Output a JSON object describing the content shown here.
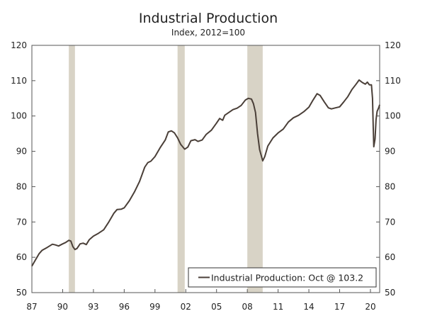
{
  "chart_data": {
    "type": "line",
    "title": "Industrial Production",
    "subtitle": "Index, 2012=100",
    "xlabel": "",
    "ylabel": "",
    "xlim": [
      1987.0,
      2020.9
    ],
    "ylim": [
      50,
      120
    ],
    "y_ticks": [
      50,
      60,
      70,
      80,
      90,
      100,
      110,
      120
    ],
    "x_ticks": [
      {
        "value": 1987,
        "label": "87"
      },
      {
        "value": 1990,
        "label": "90"
      },
      {
        "value": 1993,
        "label": "93"
      },
      {
        "value": 1996,
        "label": "96"
      },
      {
        "value": 1999,
        "label": "99"
      },
      {
        "value": 2002,
        "label": "02"
      },
      {
        "value": 2005,
        "label": "05"
      },
      {
        "value": 2008,
        "label": "08"
      },
      {
        "value": 2011,
        "label": "11"
      },
      {
        "value": 2014,
        "label": "14"
      },
      {
        "value": 2017,
        "label": "17"
      },
      {
        "value": 2020,
        "label": "20"
      }
    ],
    "recessions": [
      {
        "start": 1990.6,
        "end": 1991.2
      },
      {
        "start": 2001.2,
        "end": 2001.9
      },
      {
        "start": 2008.0,
        "end": 2009.5
      }
    ],
    "legend": {
      "label": "Industrial Production: Oct @ 103.2",
      "position": "bottom-right"
    },
    "series": [
      {
        "name": "Industrial Production",
        "color": "#4a3f38",
        "points": [
          [
            1987.0,
            57.5
          ],
          [
            1987.3,
            59.0
          ],
          [
            1987.7,
            61.0
          ],
          [
            1988.0,
            62.0
          ],
          [
            1988.5,
            62.8
          ],
          [
            1989.0,
            63.7
          ],
          [
            1989.3,
            63.5
          ],
          [
            1989.6,
            63.2
          ],
          [
            1990.0,
            63.8
          ],
          [
            1990.3,
            64.2
          ],
          [
            1990.6,
            64.8
          ],
          [
            1990.8,
            64.6
          ],
          [
            1991.0,
            63.0
          ],
          [
            1991.2,
            62.2
          ],
          [
            1991.4,
            62.5
          ],
          [
            1991.7,
            63.8
          ],
          [
            1992.0,
            64.0
          ],
          [
            1992.3,
            63.6
          ],
          [
            1992.6,
            65.0
          ],
          [
            1993.0,
            66.0
          ],
          [
            1993.5,
            66.8
          ],
          [
            1994.0,
            67.8
          ],
          [
            1994.5,
            70.0
          ],
          [
            1995.0,
            72.5
          ],
          [
            1995.3,
            73.5
          ],
          [
            1995.7,
            73.6
          ],
          [
            1996.0,
            74.0
          ],
          [
            1996.5,
            76.0
          ],
          [
            1997.0,
            78.5
          ],
          [
            1997.5,
            81.5
          ],
          [
            1998.0,
            85.5
          ],
          [
            1998.3,
            86.8
          ],
          [
            1998.6,
            87.2
          ],
          [
            1999.0,
            88.5
          ],
          [
            1999.5,
            91.0
          ],
          [
            2000.0,
            93.2
          ],
          [
            2000.3,
            95.5
          ],
          [
            2000.6,
            95.8
          ],
          [
            2000.9,
            95.2
          ],
          [
            2001.2,
            93.8
          ],
          [
            2001.5,
            92.0
          ],
          [
            2001.9,
            90.6
          ],
          [
            2002.2,
            91.2
          ],
          [
            2002.5,
            93.0
          ],
          [
            2002.9,
            93.3
          ],
          [
            2003.2,
            92.8
          ],
          [
            2003.6,
            93.2
          ],
          [
            2004.0,
            94.8
          ],
          [
            2004.5,
            96.0
          ],
          [
            2005.0,
            98.0
          ],
          [
            2005.3,
            99.3
          ],
          [
            2005.6,
            98.8
          ],
          [
            2005.8,
            100.2
          ],
          [
            2006.2,
            101.0
          ],
          [
            2006.6,
            101.8
          ],
          [
            2007.0,
            102.2
          ],
          [
            2007.4,
            103.0
          ],
          [
            2007.8,
            104.5
          ],
          [
            2008.1,
            105.0
          ],
          [
            2008.4,
            104.8
          ],
          [
            2008.6,
            103.5
          ],
          [
            2008.8,
            101.0
          ],
          [
            2009.0,
            95.0
          ],
          [
            2009.2,
            90.5
          ],
          [
            2009.5,
            87.3
          ],
          [
            2009.7,
            88.5
          ],
          [
            2010.0,
            91.5
          ],
          [
            2010.5,
            93.8
          ],
          [
            2011.0,
            95.2
          ],
          [
            2011.5,
            96.3
          ],
          [
            2012.0,
            98.3
          ],
          [
            2012.5,
            99.5
          ],
          [
            2013.0,
            100.2
          ],
          [
            2013.5,
            101.2
          ],
          [
            2014.0,
            102.5
          ],
          [
            2014.4,
            104.5
          ],
          [
            2014.8,
            106.3
          ],
          [
            2015.1,
            105.8
          ],
          [
            2015.5,
            104.0
          ],
          [
            2015.9,
            102.3
          ],
          [
            2016.2,
            102.0
          ],
          [
            2016.6,
            102.3
          ],
          [
            2017.0,
            102.6
          ],
          [
            2017.4,
            104.0
          ],
          [
            2017.8,
            105.5
          ],
          [
            2018.2,
            107.5
          ],
          [
            2018.6,
            109.0
          ],
          [
            2018.9,
            110.2
          ],
          [
            2019.2,
            109.5
          ],
          [
            2019.5,
            109.0
          ],
          [
            2019.7,
            109.6
          ],
          [
            2019.9,
            108.8
          ],
          [
            2020.1,
            108.8
          ],
          [
            2020.2,
            105.0
          ],
          [
            2020.27,
            97.0
          ],
          [
            2020.33,
            91.3
          ],
          [
            2020.45,
            93.5
          ],
          [
            2020.55,
            99.0
          ],
          [
            2020.65,
            101.3
          ],
          [
            2020.8,
            102.3
          ],
          [
            2020.9,
            103.2
          ]
        ]
      }
    ]
  }
}
